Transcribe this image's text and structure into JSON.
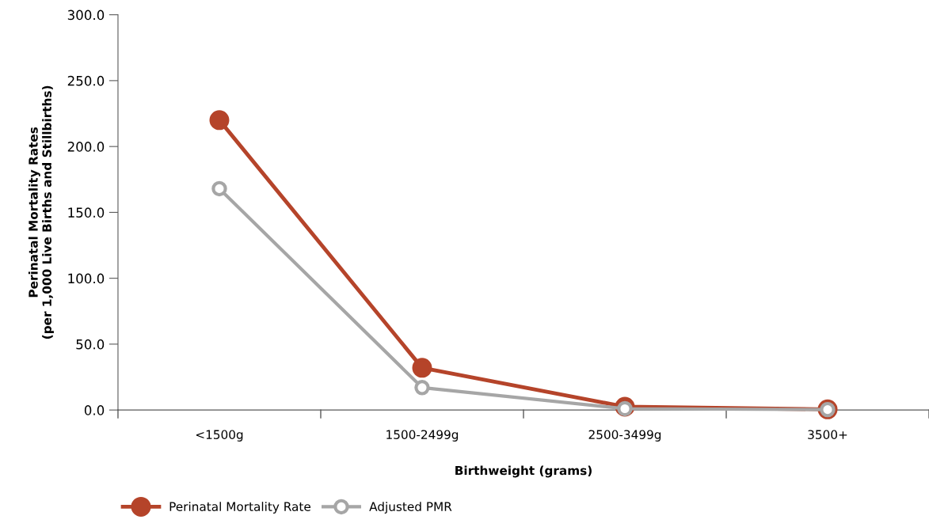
{
  "chart_data": {
    "type": "line",
    "xlabel": "Birthweight (grams)",
    "ylabel": "Perinatal Mortality Rates\n(per 1,000 Live Births and Stillbirths)",
    "categories": [
      "<1500g",
      "1500-2499g",
      "2500-3499g",
      "3500+"
    ],
    "series": [
      {
        "name": "Perinatal Mortality Rate",
        "color": "#b5442a",
        "values": [
          220,
          32,
          2.5,
          0.5
        ],
        "marker": "circle"
      },
      {
        "name": "Adjusted PMR",
        "color": "#a6a6a6",
        "values": [
          168,
          17,
          1,
          0.3
        ],
        "marker": "circle"
      }
    ],
    "ylim": [
      0,
      300
    ],
    "yticks": [
      {
        "value": 0,
        "label": "0.0"
      },
      {
        "value": 50,
        "label": "50.0"
      },
      {
        "value": 100,
        "label": "100.0"
      },
      {
        "value": 150,
        "label": "150.0"
      },
      {
        "value": 200,
        "label": "200.0"
      },
      {
        "value": 250,
        "label": "250.0"
      },
      {
        "value": 300,
        "label": "300.0"
      }
    ],
    "grid": false,
    "legend": "bottom",
    "line_style": "solid"
  }
}
